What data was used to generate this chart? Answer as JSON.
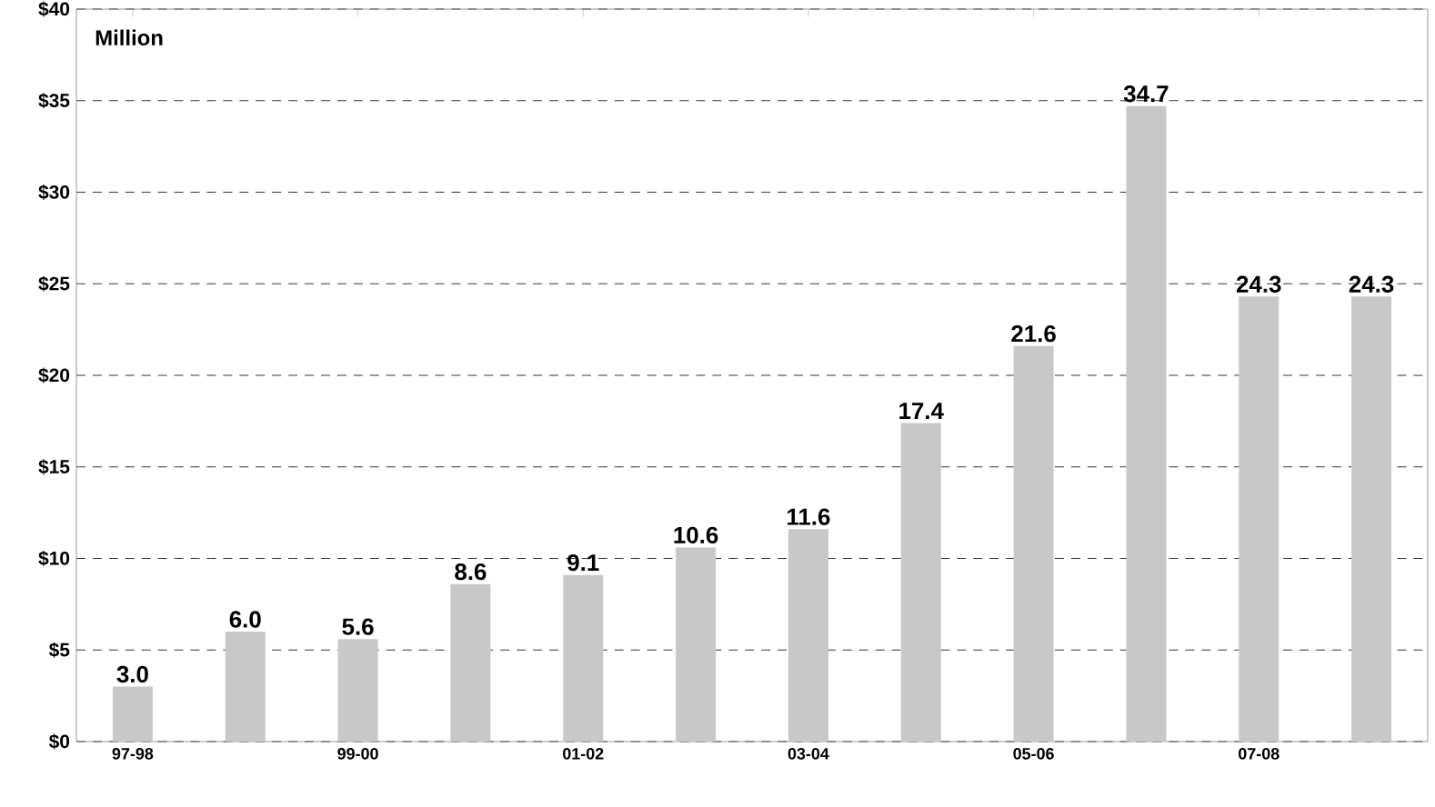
{
  "chart_data": {
    "type": "bar",
    "categories": [
      "97-98",
      null,
      "99-00",
      null,
      "01-02",
      null,
      "03-04",
      null,
      "05-06",
      null,
      "07-08",
      null
    ],
    "values": [
      3.0,
      6.0,
      5.6,
      8.6,
      9.1,
      10.6,
      11.6,
      17.4,
      21.6,
      34.7,
      24.3,
      24.3
    ],
    "value_labels": [
      "3.0",
      "6.0",
      "5.6",
      "8.6",
      "9.1",
      "10.6",
      "11.6",
      "17.4",
      "21.6",
      "34.7",
      "24.3",
      "24.3"
    ],
    "color": "#c8c8c8",
    "ylim": [
      0,
      40
    ],
    "yticks": [
      {
        "value": 0,
        "label": "$0"
      },
      {
        "value": 5,
        "label": "$5"
      },
      {
        "value": 10,
        "label": "$10"
      },
      {
        "value": 15,
        "label": "$15"
      },
      {
        "value": 20,
        "label": "$20"
      },
      {
        "value": 25,
        "label": "$25"
      },
      {
        "value": 30,
        "label": "$30"
      },
      {
        "value": 35,
        "label": "$35"
      },
      {
        "value": 40,
        "label": "$40"
      }
    ],
    "grid": "y",
    "annotations": [
      "Million"
    ]
  }
}
